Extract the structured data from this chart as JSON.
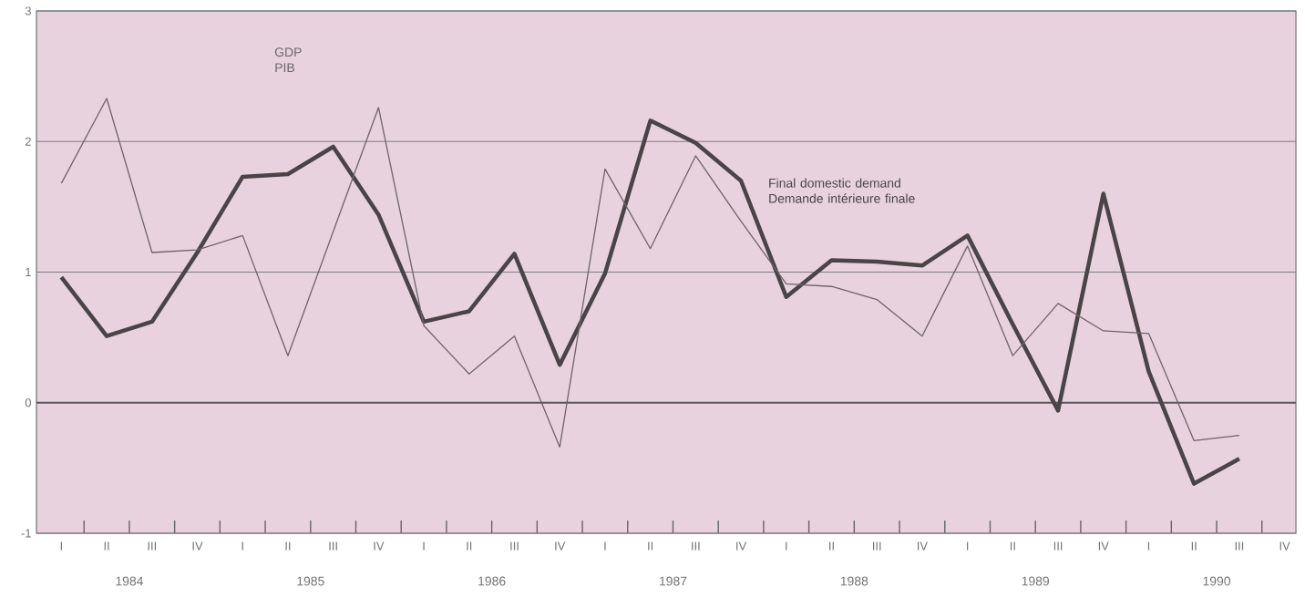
{
  "chart_data": {
    "type": "line",
    "categories": [
      "I",
      "II",
      "III",
      "IV",
      "I",
      "II",
      "III",
      "IV",
      "I",
      "II",
      "III",
      "IV",
      "I",
      "II",
      "III",
      "IV",
      "I",
      "II",
      "III",
      "IV",
      "I",
      "II",
      "III",
      "IV",
      "I",
      "II",
      "III",
      "IV"
    ],
    "series": [
      {
        "name": "Final domestic demand Demande intérieure finale",
        "color": "#4a4446",
        "values": [
          0.96,
          0.51,
          0.62,
          1.15,
          1.73,
          1.75,
          1.96,
          1.44,
          0.62,
          0.7,
          1.14,
          0.29,
          0.99,
          2.16,
          1.99,
          1.7,
          0.81,
          1.09,
          1.08,
          1.05,
          1.28,
          0.6,
          -0.06,
          1.6,
          0.24,
          -0.62,
          -0.43,
          null
        ]
      },
      {
        "name": "GDP PIB",
        "color": "#6e6468",
        "values": [
          1.68,
          2.33,
          1.15,
          1.17,
          1.28,
          0.36,
          1.31,
          2.26,
          0.59,
          0.22,
          0.51,
          -0.34,
          1.79,
          1.18,
          1.89,
          1.39,
          0.91,
          0.89,
          0.79,
          0.51,
          1.2,
          0.36,
          0.76,
          0.55,
          0.53,
          -0.29,
          -0.25,
          null
        ]
      }
    ],
    "ylim": [
      -1,
      3
    ],
    "yticks": [
      -1,
      0,
      1,
      2,
      3
    ],
    "grid": "y",
    "ref_lines": [
      {
        "axis": "y",
        "value": 0
      }
    ],
    "annotations": [
      "1984",
      "1985",
      "1986",
      "1987",
      "1988",
      "1989",
      "1990"
    ],
    "marker": "none",
    "line_style": "solid"
  }
}
